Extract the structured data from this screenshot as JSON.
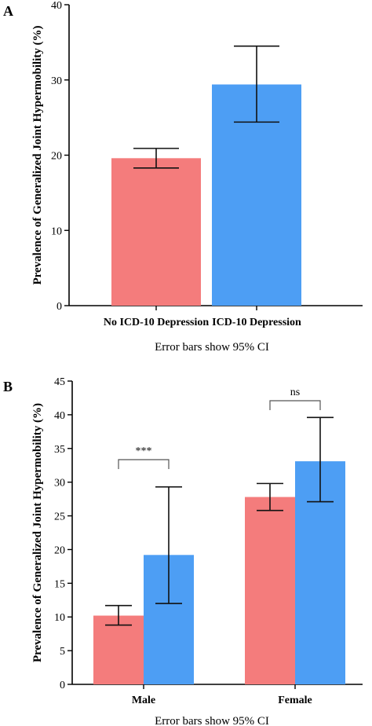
{
  "chart_data": [
    {
      "panel_letter": "A",
      "type": "bar",
      "ylabel_line1": "Prevalence of Generalized  Joint Hypermobility (%)",
      "xcaption": "Error bars show 95% CI",
      "ylim": [
        0,
        40
      ],
      "yticks": [
        0,
        10,
        20,
        30,
        40
      ],
      "categories": [
        "No ICD-10 Depression",
        "ICD-10 Depression"
      ],
      "values": [
        19.6,
        29.4
      ],
      "ci_low": [
        18.3,
        24.4
      ],
      "ci_high": [
        20.9,
        34.5
      ],
      "colors": [
        "#f47c7c",
        "#4d9ef4"
      ],
      "grid": false
    },
    {
      "panel_letter": "B",
      "type": "bar",
      "ylabel_line1": "Prevalence of Generalized  Joint Hypermobility (%)",
      "xcaption": "Error bars show 95% CI",
      "ylim": [
        0,
        45
      ],
      "yticks": [
        0,
        5,
        10,
        15,
        20,
        25,
        30,
        35,
        40,
        45
      ],
      "categories": [
        "Male",
        "Female"
      ],
      "series": [
        {
          "values": [
            10.2,
            27.8
          ],
          "ci_low": [
            8.8,
            25.8
          ],
          "ci_high": [
            11.7,
            29.8
          ],
          "color": "#f47c7c"
        },
        {
          "values": [
            19.2,
            33.1
          ],
          "ci_low": [
            12.0,
            27.1
          ],
          "ci_high": [
            29.3,
            39.6
          ],
          "color": "#4d9ef4"
        }
      ],
      "significance": [
        "***",
        "ns"
      ],
      "grid": false
    }
  ]
}
